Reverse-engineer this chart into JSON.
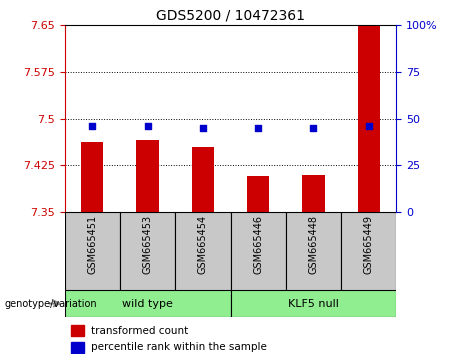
{
  "title": "GDS5200 / 10472361",
  "categories": [
    "GSM665451",
    "GSM665453",
    "GSM665454",
    "GSM665446",
    "GSM665448",
    "GSM665449"
  ],
  "bar_values": [
    7.462,
    7.465,
    7.455,
    7.408,
    7.41,
    7.648
  ],
  "percentile_values": [
    46,
    46,
    45,
    45,
    45,
    46
  ],
  "ylim_left": [
    7.35,
    7.65
  ],
  "ylim_right": [
    0,
    100
  ],
  "yticks_left": [
    7.35,
    7.425,
    7.5,
    7.575,
    7.65
  ],
  "ytick_labels_left": [
    "7.35",
    "7.425",
    "7.5",
    "7.575",
    "7.65"
  ],
  "yticks_right": [
    0,
    25,
    50,
    75,
    100
  ],
  "ytick_labels_right": [
    "0",
    "25",
    "50",
    "75",
    "100%"
  ],
  "bar_color": "#CC0000",
  "dot_color": "#0000CC",
  "bar_width": 0.4,
  "left_tick_color": "#CC0000",
  "right_tick_color": "#0000CC",
  "grid_dotted_values": [
    7.425,
    7.5,
    7.575
  ],
  "tick_area_color": "#c8c8c8",
  "group_color": "#90EE90",
  "wild_type_label": "wild type",
  "klf5_label": "KLF5 null",
  "legend_bar_label": "transformed count",
  "legend_dot_label": "percentile rank within the sample",
  "geno_label": "genotype/variation"
}
